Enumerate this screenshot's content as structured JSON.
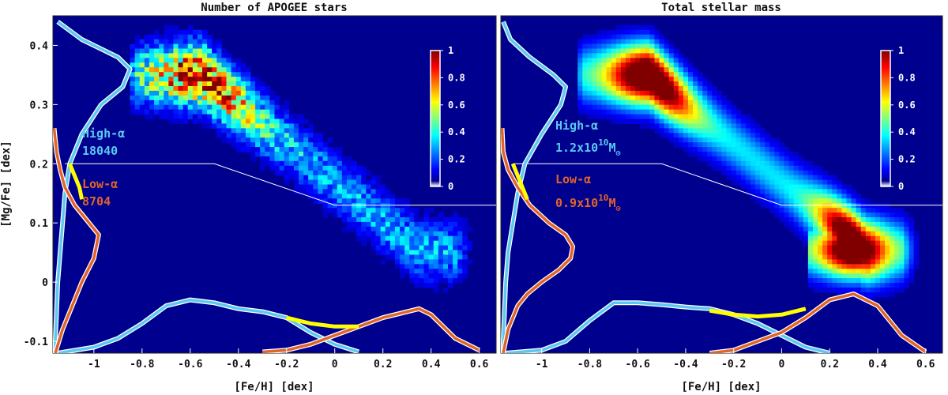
{
  "chart_data": [
    {
      "type": "heatmap",
      "title": "Number of APOGEE stars",
      "xlabel": "[Fe/H] [dex]",
      "ylabel": "[Mg/Fe] [dex]",
      "xlim": [
        -1.17,
        0.67
      ],
      "ylim": [
        -0.12,
        0.45
      ],
      "xticks": [
        "-1",
        "-0.8",
        "-0.6",
        "-0.4",
        "-0.2",
        "0",
        "0.2",
        "0.4",
        "0.6"
      ],
      "yticks": [
        "-0.1",
        "0",
        "0.1",
        "0.2",
        "0.3",
        "0.4"
      ],
      "colorbar": {
        "range": [
          0,
          1
        ],
        "ticks": [
          "0",
          "0.2",
          "0.4",
          "0.6",
          "0.8",
          "1"
        ]
      },
      "divider": {
        "x": [
          -1.12,
          -0.5,
          0.0,
          0.67
        ],
        "y": [
          0.2,
          0.2,
          0.13,
          0.13
        ]
      },
      "annotations": [
        {
          "label": "High-α",
          "value": "18040",
          "color": "#5bc8f0"
        },
        {
          "label": "Low-α",
          "value": "8704",
          "color": "#e0642a"
        }
      ],
      "series": [
        {
          "name": "High-α [Fe/H] distribution",
          "color": "#5bc8f0",
          "x": [
            -1.15,
            -1.0,
            -0.9,
            -0.8,
            -0.7,
            -0.6,
            -0.5,
            -0.4,
            -0.3,
            -0.2,
            -0.1,
            0.0,
            0.1
          ],
          "y": [
            -0.12,
            -0.11,
            -0.095,
            -0.07,
            -0.04,
            -0.03,
            -0.035,
            -0.045,
            -0.05,
            -0.06,
            -0.085,
            -0.105,
            -0.118
          ]
        },
        {
          "name": "Low-α [Fe/H] distribution",
          "color": "#e0642a",
          "x": [
            -0.3,
            -0.2,
            -0.1,
            0.0,
            0.1,
            0.2,
            0.3,
            0.35,
            0.4,
            0.5,
            0.6
          ],
          "y": [
            -0.118,
            -0.115,
            -0.105,
            -0.09,
            -0.075,
            -0.06,
            -0.05,
            -0.045,
            -0.055,
            -0.095,
            -0.115
          ]
        },
        {
          "name": "Total [Fe/H] distribution",
          "color": "#ffff00",
          "x": [
            -0.2,
            -0.1,
            0.0,
            0.1
          ],
          "y": [
            -0.06,
            -0.07,
            -0.075,
            -0.075
          ]
        },
        {
          "name": "High-α [Mg/Fe] distribution",
          "color": "#5bc8f0",
          "y": [
            -0.12,
            -0.1,
            -0.05,
            0.0,
            0.05,
            0.1,
            0.15,
            0.2,
            0.25,
            0.3,
            0.33,
            0.36,
            0.38,
            0.41,
            0.44
          ],
          "x": [
            -1.16,
            -1.16,
            -1.155,
            -1.15,
            -1.14,
            -1.13,
            -1.12,
            -1.1,
            -1.05,
            -0.97,
            -0.88,
            -0.85,
            -0.9,
            -1.05,
            -1.15
          ]
        },
        {
          "name": "Low-α [Mg/Fe] distribution",
          "color": "#e0642a",
          "y": [
            -0.12,
            -0.08,
            -0.04,
            0.0,
            0.04,
            0.08,
            0.1,
            0.13,
            0.16,
            0.19,
            0.22,
            0.26
          ],
          "x": [
            -1.16,
            -1.13,
            -1.09,
            -1.05,
            -1.0,
            -0.98,
            -1.02,
            -1.08,
            -1.12,
            -1.14,
            -1.155,
            -1.165
          ]
        },
        {
          "name": "Total [Mg/Fe] distribution",
          "color": "#ffff00",
          "y": [
            0.14,
            0.16,
            0.18,
            0.2
          ],
          "x": [
            -1.05,
            -1.06,
            -1.08,
            -1.1
          ]
        }
      ]
    },
    {
      "type": "heatmap",
      "title": "Total stellar mass",
      "xlabel": "[Fe/H] [dex]",
      "ylabel": "",
      "xlim": [
        -1.17,
        0.67
      ],
      "ylim": [
        -0.12,
        0.45
      ],
      "xticks": [
        "-1",
        "-0.8",
        "-0.6",
        "-0.4",
        "-0.2",
        "0",
        "0.2",
        "0.4",
        "0.6"
      ],
      "yticks": [],
      "colorbar": {
        "range": [
          0,
          1
        ],
        "ticks": [
          "0",
          "0.2",
          "0.4",
          "0.6",
          "0.8",
          "1"
        ]
      },
      "divider": {
        "x": [
          -1.12,
          -0.5,
          0.0,
          0.67
        ],
        "y": [
          0.2,
          0.2,
          0.13,
          0.13
        ]
      },
      "annotations": [
        {
          "label": "High-α",
          "value": "1.2x10",
          "exponent": "10",
          "unit": "M",
          "sun": "⊙",
          "color": "#5bc8f0"
        },
        {
          "label": "Low-α",
          "value": "0.9x10",
          "exponent": "10",
          "unit": "M",
          "sun": "⊙",
          "color": "#e0642a"
        }
      ],
      "series": [
        {
          "name": "High-α [Fe/H] distribution",
          "color": "#5bc8f0",
          "x": [
            -1.15,
            -1.0,
            -0.9,
            -0.8,
            -0.7,
            -0.6,
            -0.5,
            -0.4,
            -0.3,
            -0.2,
            -0.1,
            0.0,
            0.1,
            0.2
          ],
          "y": [
            -0.12,
            -0.115,
            -0.1,
            -0.065,
            -0.035,
            -0.035,
            -0.038,
            -0.042,
            -0.045,
            -0.055,
            -0.07,
            -0.09,
            -0.11,
            -0.12
          ]
        },
        {
          "name": "Low-α [Fe/H] distribution",
          "color": "#e0642a",
          "x": [
            -0.3,
            -0.2,
            -0.1,
            0.0,
            0.1,
            0.2,
            0.3,
            0.4,
            0.5,
            0.6
          ],
          "y": [
            -0.12,
            -0.115,
            -0.1,
            -0.085,
            -0.06,
            -0.03,
            -0.02,
            -0.04,
            -0.09,
            -0.118
          ]
        },
        {
          "name": "Total [Fe/H] distribution",
          "color": "#ffff00",
          "x": [
            -0.3,
            -0.2,
            -0.1,
            0.0,
            0.1
          ],
          "y": [
            -0.048,
            -0.055,
            -0.058,
            -0.055,
            -0.045
          ]
        },
        {
          "name": "High-α [Mg/Fe] distribution",
          "color": "#5bc8f0",
          "y": [
            -0.12,
            -0.1,
            -0.05,
            0.0,
            0.05,
            0.1,
            0.15,
            0.2,
            0.25,
            0.3,
            0.33,
            0.35,
            0.38,
            0.41,
            0.44
          ],
          "x": [
            -1.16,
            -1.16,
            -1.155,
            -1.15,
            -1.14,
            -1.12,
            -1.1,
            -1.07,
            -1.0,
            -0.92,
            -0.9,
            -0.95,
            -1.05,
            -1.13,
            -1.16
          ]
        },
        {
          "name": "Low-α [Mg/Fe] distribution",
          "color": "#e0642a",
          "y": [
            -0.12,
            -0.08,
            -0.04,
            -0.02,
            0.0,
            0.02,
            0.04,
            0.06,
            0.08,
            0.1,
            0.13,
            0.16,
            0.19,
            0.22,
            0.26
          ],
          "x": [
            -1.16,
            -1.14,
            -1.1,
            -1.06,
            -1.0,
            -0.93,
            -0.88,
            -0.87,
            -0.9,
            -0.97,
            -1.05,
            -1.1,
            -1.14,
            -1.16,
            -1.165
          ]
        },
        {
          "name": "Total [Mg/Fe] distribution",
          "color": "#ffff00",
          "y": [
            0.14,
            0.16,
            0.18,
            0.2
          ],
          "x": [
            -1.06,
            -1.08,
            -1.1,
            -1.12
          ]
        }
      ]
    }
  ]
}
